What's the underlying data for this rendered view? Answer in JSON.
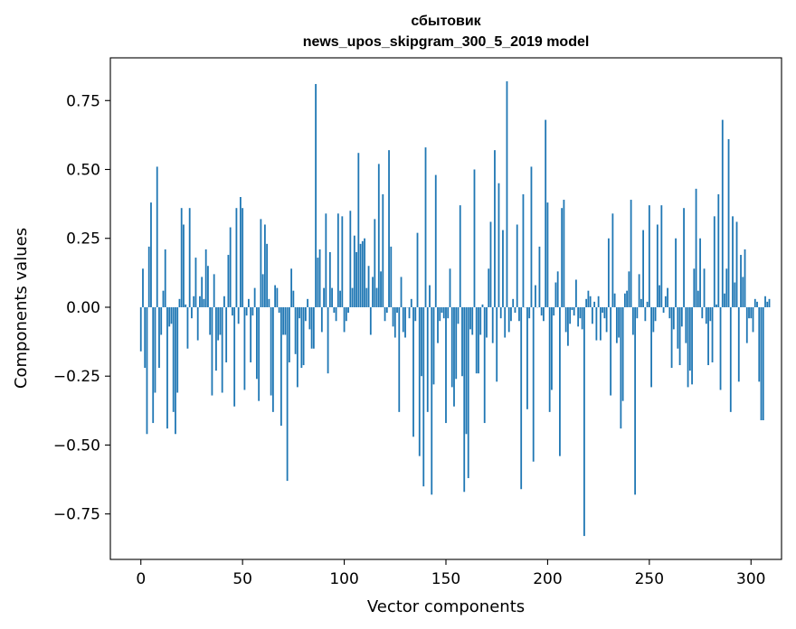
{
  "chart_data": {
    "type": "bar",
    "title": "сбытовик",
    "subtitle": "news_upos_skipgram_300_5_2019 model",
    "xlabel": "Vector components",
    "ylabel": "Components values",
    "xlim": [
      -15,
      315
    ],
    "ylim": [
      -0.915,
      0.905
    ],
    "xticks": [
      0,
      50,
      100,
      150,
      200,
      250,
      300
    ],
    "xtick_labels": [
      "0",
      "50",
      "100",
      "150",
      "200",
      "250",
      "300"
    ],
    "yticks": [
      -0.75,
      -0.5,
      -0.25,
      0.0,
      0.25,
      0.5,
      0.75
    ],
    "ytick_labels": [
      "−0.75",
      "−0.50",
      "−0.25",
      "0.00",
      "0.25",
      "0.50",
      "0.75"
    ],
    "grid": false,
    "bar_color": "#1f77b4",
    "values": [
      -0.16,
      0.14,
      -0.22,
      -0.46,
      0.22,
      0.38,
      -0.42,
      -0.31,
      0.51,
      -0.22,
      -0.1,
      0.06,
      0.21,
      -0.44,
      -0.07,
      -0.06,
      -0.38,
      -0.46,
      -0.31,
      0.03,
      0.36,
      0.3,
      0.01,
      -0.15,
      0.36,
      -0.04,
      0.04,
      0.18,
      -0.12,
      0.04,
      0.11,
      0.03,
      0.21,
      0.15,
      -0.1,
      -0.32,
      0.12,
      -0.23,
      -0.12,
      -0.1,
      -0.31,
      0.04,
      -0.2,
      0.19,
      0.29,
      -0.03,
      -0.36,
      0.36,
      -0.06,
      0.4,
      0.36,
      -0.3,
      -0.03,
      0.03,
      -0.2,
      -0.03,
      0.07,
      -0.26,
      -0.34,
      0.32,
      0.12,
      0.3,
      0.23,
      0.03,
      -0.32,
      -0.38,
      0.08,
      0.07,
      -0.02,
      -0.43,
      -0.1,
      -0.1,
      -0.63,
      -0.2,
      0.14,
      0.06,
      -0.17,
      -0.29,
      -0.04,
      -0.22,
      -0.21,
      -0.05,
      0.03,
      -0.08,
      -0.15,
      -0.15,
      0.81,
      0.18,
      0.21,
      -0.09,
      0.07,
      0.34,
      -0.24,
      0.2,
      0.07,
      -0.02,
      -0.05,
      0.34,
      0.06,
      0.33,
      -0.09,
      -0.05,
      -0.02,
      0.35,
      0.07,
      0.26,
      0.2,
      0.56,
      0.23,
      0.24,
      0.25,
      0.07,
      0.15,
      -0.1,
      0.11,
      0.32,
      0.07,
      0.52,
      0.13,
      0.41,
      -0.05,
      -0.02,
      0.57,
      0.22,
      -0.07,
      -0.11,
      -0.02,
      -0.38,
      0.11,
      -0.09,
      -0.11,
      0.0,
      -0.04,
      0.03,
      -0.47,
      -0.05,
      0.27,
      -0.54,
      -0.25,
      -0.65,
      0.58,
      -0.38,
      0.08,
      -0.68,
      -0.28,
      0.48,
      -0.13,
      -0.05,
      -0.02,
      -0.04,
      -0.42,
      -0.04,
      0.14,
      -0.29,
      -0.36,
      -0.26,
      -0.06,
      0.37,
      -0.25,
      -0.67,
      -0.46,
      -0.62,
      -0.08,
      -0.1,
      0.5,
      -0.24,
      -0.24,
      -0.1,
      0.01,
      -0.42,
      -0.11,
      0.14,
      0.31,
      -0.13,
      0.57,
      -0.27,
      0.45,
      -0.04,
      0.28,
      -0.11,
      0.82,
      -0.09,
      -0.05,
      0.03,
      -0.02,
      0.3,
      -0.05,
      -0.66,
      0.41,
      0.0,
      -0.37,
      -0.04,
      0.51,
      -0.56,
      0.08,
      0.0,
      0.22,
      -0.03,
      -0.05,
      0.68,
      0.38,
      -0.38,
      -0.3,
      -0.03,
      0.09,
      0.13,
      -0.54,
      0.36,
      0.39,
      -0.09,
      -0.14,
      -0.06,
      -0.01,
      -0.03,
      0.1,
      -0.07,
      -0.04,
      -0.08,
      -0.83,
      0.03,
      0.06,
      0.04,
      -0.06,
      0.02,
      -0.12,
      0.04,
      -0.12,
      -0.02,
      -0.04,
      -0.09,
      0.25,
      -0.32,
      0.34,
      0.05,
      -0.13,
      -0.11,
      -0.44,
      -0.34,
      0.05,
      0.06,
      0.13,
      0.39,
      -0.1,
      -0.68,
      -0.04,
      0.12,
      0.03,
      0.28,
      -0.05,
      0.02,
      0.37,
      -0.29,
      -0.09,
      -0.05,
      0.3,
      0.08,
      0.37,
      -0.02,
      0.04,
      0.07,
      -0.04,
      -0.22,
      -0.08,
      0.25,
      -0.15,
      -0.21,
      -0.07,
      0.36,
      -0.13,
      -0.29,
      -0.23,
      -0.28,
      0.14,
      0.43,
      0.06,
      0.25,
      -0.04,
      0.14,
      -0.06,
      -0.21,
      -0.05,
      -0.2,
      0.33,
      0.01,
      0.41,
      -0.3,
      0.68,
      0.05,
      0.14,
      0.61,
      -0.38,
      0.33,
      0.09,
      0.31,
      -0.27,
      0.19,
      0.11,
      0.21,
      -0.13,
      -0.04,
      -0.04,
      -0.09,
      0.03,
      0.02,
      -0.27,
      -0.41,
      -0.41,
      0.04,
      0.02,
      0.03
    ]
  }
}
